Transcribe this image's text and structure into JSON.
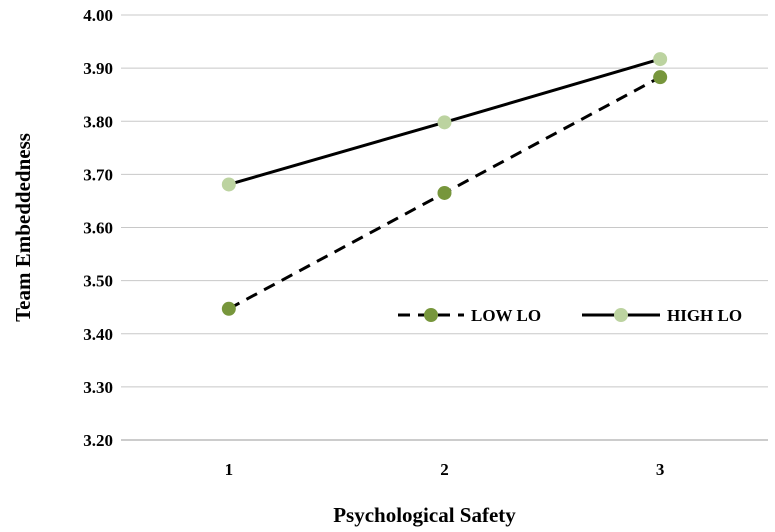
{
  "chart_data": {
    "type": "line",
    "title": "",
    "xlabel": "Psychological Safety",
    "ylabel": "Team Embeddedness",
    "x": [
      1,
      2,
      3
    ],
    "xticks": [
      "1",
      "2",
      "3"
    ],
    "ylim": [
      3.2,
      4.0
    ],
    "yticks": [
      "3.20",
      "3.30",
      "3.40",
      "3.50",
      "3.60",
      "3.70",
      "3.80",
      "3.90",
      "4.00"
    ],
    "grid": true,
    "legend_position": "right",
    "series": [
      {
        "name": "LOW LO",
        "values": [
          3.447,
          3.665,
          3.883
        ],
        "line_style": "dashed",
        "line_color": "#000000",
        "marker_color": "#77963c"
      },
      {
        "name": "HIGH LO",
        "values": [
          3.681,
          3.798,
          3.917
        ],
        "line_style": "solid",
        "line_color": "#000000",
        "marker_color": "#bcd3a0"
      }
    ]
  }
}
